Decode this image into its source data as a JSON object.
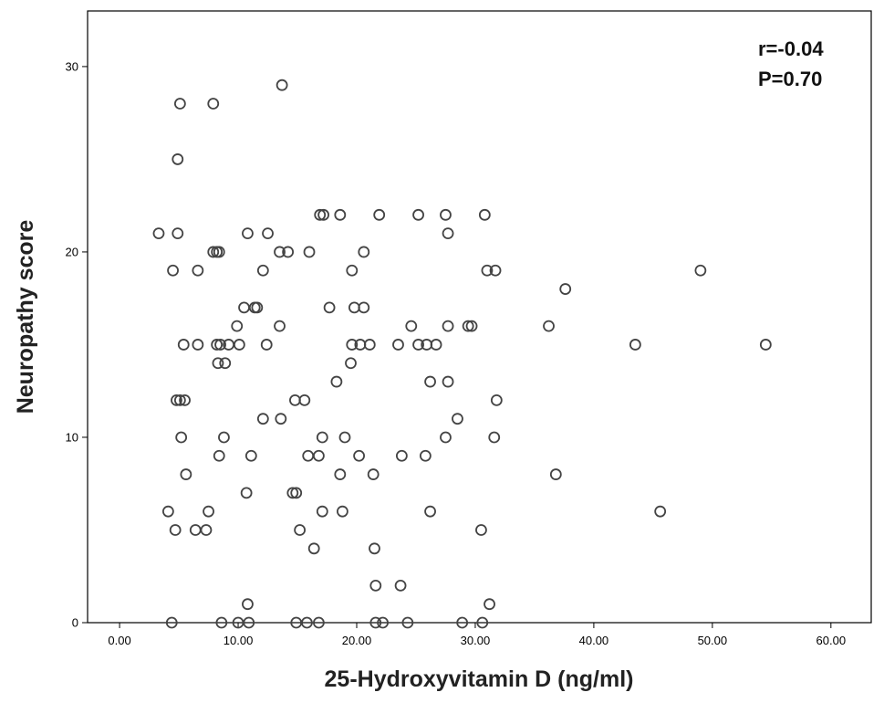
{
  "chart_data": {
    "type": "scatter",
    "xlabel": "25-Hydroxyvitamin D (ng/ml)",
    "ylabel": "Neuropathy score",
    "xlim": [
      -2.7,
      63.4
    ],
    "ylim": [
      0,
      33
    ],
    "xticks": [
      "0.00",
      "10.00",
      "20.00",
      "30.00",
      "40.00",
      "50.00",
      "60.00"
    ],
    "yticks": [
      "0",
      "10",
      "20",
      "30"
    ],
    "grid": false,
    "annotations": [
      "r=-0.04",
      "P=0.70"
    ],
    "marker_color": "#444444",
    "points": [
      {
        "x": 4.4,
        "y": 0
      },
      {
        "x": 8.6,
        "y": 0
      },
      {
        "x": 10.0,
        "y": 0
      },
      {
        "x": 10.9,
        "y": 0
      },
      {
        "x": 14.9,
        "y": 0
      },
      {
        "x": 15.8,
        "y": 0
      },
      {
        "x": 16.8,
        "y": 0
      },
      {
        "x": 21.6,
        "y": 0
      },
      {
        "x": 22.2,
        "y": 0
      },
      {
        "x": 24.3,
        "y": 0
      },
      {
        "x": 28.9,
        "y": 0
      },
      {
        "x": 30.6,
        "y": 0
      },
      {
        "x": 10.8,
        "y": 1
      },
      {
        "x": 31.2,
        "y": 1
      },
      {
        "x": 21.6,
        "y": 2
      },
      {
        "x": 23.7,
        "y": 2
      },
      {
        "x": 16.4,
        "y": 4
      },
      {
        "x": 21.5,
        "y": 4
      },
      {
        "x": 4.7,
        "y": 5
      },
      {
        "x": 6.4,
        "y": 5
      },
      {
        "x": 7.3,
        "y": 5
      },
      {
        "x": 15.2,
        "y": 5
      },
      {
        "x": 30.5,
        "y": 5
      },
      {
        "x": 4.1,
        "y": 6
      },
      {
        "x": 7.5,
        "y": 6
      },
      {
        "x": 17.1,
        "y": 6
      },
      {
        "x": 18.8,
        "y": 6
      },
      {
        "x": 26.2,
        "y": 6
      },
      {
        "x": 45.6,
        "y": 6
      },
      {
        "x": 10.7,
        "y": 7
      },
      {
        "x": 14.6,
        "y": 7
      },
      {
        "x": 14.9,
        "y": 7
      },
      {
        "x": 5.6,
        "y": 8
      },
      {
        "x": 18.6,
        "y": 8
      },
      {
        "x": 21.4,
        "y": 8
      },
      {
        "x": 36.8,
        "y": 8
      },
      {
        "x": 8.4,
        "y": 9
      },
      {
        "x": 11.1,
        "y": 9
      },
      {
        "x": 15.9,
        "y": 9
      },
      {
        "x": 16.8,
        "y": 9
      },
      {
        "x": 20.2,
        "y": 9
      },
      {
        "x": 23.8,
        "y": 9
      },
      {
        "x": 25.8,
        "y": 9
      },
      {
        "x": 5.2,
        "y": 10
      },
      {
        "x": 8.8,
        "y": 10
      },
      {
        "x": 17.1,
        "y": 10
      },
      {
        "x": 19.0,
        "y": 10
      },
      {
        "x": 27.5,
        "y": 10
      },
      {
        "x": 31.6,
        "y": 10
      },
      {
        "x": 12.1,
        "y": 11
      },
      {
        "x": 13.6,
        "y": 11
      },
      {
        "x": 28.5,
        "y": 11
      },
      {
        "x": 4.8,
        "y": 12
      },
      {
        "x": 5.1,
        "y": 12
      },
      {
        "x": 5.5,
        "y": 12
      },
      {
        "x": 14.8,
        "y": 12
      },
      {
        "x": 15.6,
        "y": 12
      },
      {
        "x": 31.8,
        "y": 12
      },
      {
        "x": 18.3,
        "y": 13
      },
      {
        "x": 26.2,
        "y": 13
      },
      {
        "x": 27.7,
        "y": 13
      },
      {
        "x": 8.3,
        "y": 14
      },
      {
        "x": 8.9,
        "y": 14
      },
      {
        "x": 19.5,
        "y": 14
      },
      {
        "x": 5.4,
        "y": 15
      },
      {
        "x": 6.6,
        "y": 15
      },
      {
        "x": 8.2,
        "y": 15
      },
      {
        "x": 8.5,
        "y": 15
      },
      {
        "x": 9.2,
        "y": 15
      },
      {
        "x": 10.1,
        "y": 15
      },
      {
        "x": 12.4,
        "y": 15
      },
      {
        "x": 19.6,
        "y": 15
      },
      {
        "x": 20.3,
        "y": 15
      },
      {
        "x": 21.1,
        "y": 15
      },
      {
        "x": 23.5,
        "y": 15
      },
      {
        "x": 25.2,
        "y": 15
      },
      {
        "x": 25.9,
        "y": 15
      },
      {
        "x": 26.7,
        "y": 15
      },
      {
        "x": 43.5,
        "y": 15
      },
      {
        "x": 54.5,
        "y": 15
      },
      {
        "x": 9.9,
        "y": 16
      },
      {
        "x": 13.5,
        "y": 16
      },
      {
        "x": 24.6,
        "y": 16
      },
      {
        "x": 27.7,
        "y": 16
      },
      {
        "x": 29.4,
        "y": 16
      },
      {
        "x": 29.7,
        "y": 16
      },
      {
        "x": 36.2,
        "y": 16
      },
      {
        "x": 10.5,
        "y": 17
      },
      {
        "x": 11.4,
        "y": 17
      },
      {
        "x": 11.6,
        "y": 17
      },
      {
        "x": 17.7,
        "y": 17
      },
      {
        "x": 19.8,
        "y": 17
      },
      {
        "x": 20.6,
        "y": 17
      },
      {
        "x": 37.6,
        "y": 18
      },
      {
        "x": 4.5,
        "y": 19
      },
      {
        "x": 6.6,
        "y": 19
      },
      {
        "x": 12.1,
        "y": 19
      },
      {
        "x": 19.6,
        "y": 19
      },
      {
        "x": 31.0,
        "y": 19
      },
      {
        "x": 31.7,
        "y": 19
      },
      {
        "x": 49.0,
        "y": 19
      },
      {
        "x": 7.9,
        "y": 20
      },
      {
        "x": 8.2,
        "y": 20
      },
      {
        "x": 8.4,
        "y": 20
      },
      {
        "x": 13.5,
        "y": 20
      },
      {
        "x": 14.2,
        "y": 20
      },
      {
        "x": 16.0,
        "y": 20
      },
      {
        "x": 20.6,
        "y": 20
      },
      {
        "x": 3.3,
        "y": 21
      },
      {
        "x": 4.9,
        "y": 21
      },
      {
        "x": 10.8,
        "y": 21
      },
      {
        "x": 12.5,
        "y": 21
      },
      {
        "x": 27.7,
        "y": 21
      },
      {
        "x": 16.9,
        "y": 22
      },
      {
        "x": 17.2,
        "y": 22
      },
      {
        "x": 18.6,
        "y": 22
      },
      {
        "x": 21.9,
        "y": 22
      },
      {
        "x": 25.2,
        "y": 22
      },
      {
        "x": 27.5,
        "y": 22
      },
      {
        "x": 30.8,
        "y": 22
      },
      {
        "x": 4.9,
        "y": 25
      },
      {
        "x": 5.1,
        "y": 28
      },
      {
        "x": 7.9,
        "y": 28
      },
      {
        "x": 13.7,
        "y": 29
      }
    ]
  }
}
